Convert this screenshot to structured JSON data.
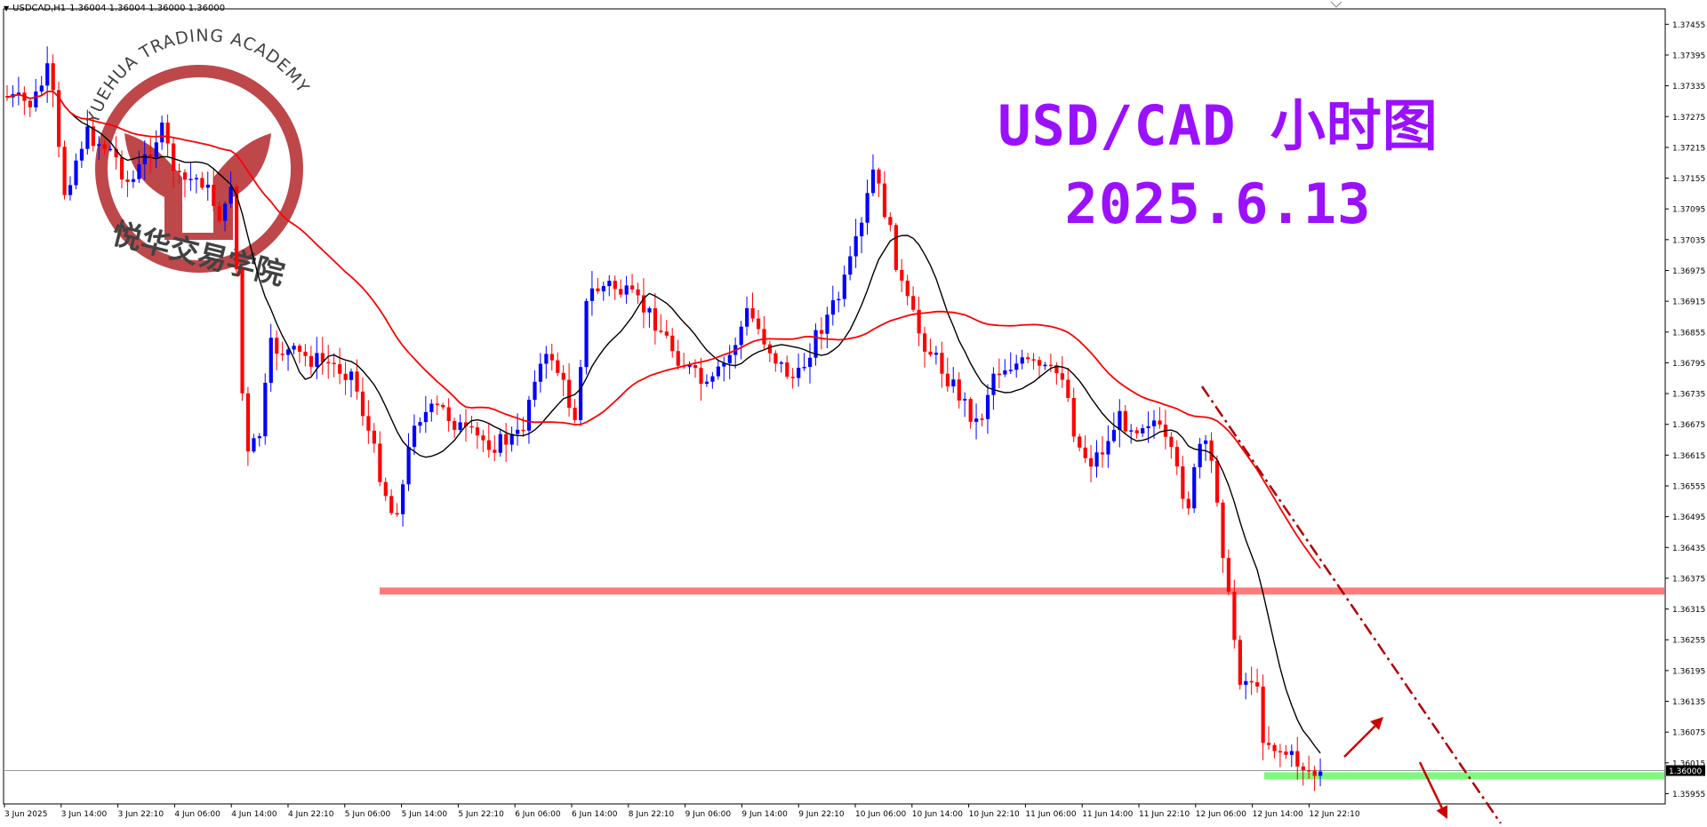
{
  "header": {
    "symbol_label": "USDCAD,H1",
    "ohlc_text": "1.36004 1.36004 1.36000 1.36000"
  },
  "headline": {
    "line1": "USD/CAD 小时图",
    "line2": "2025.6.13"
  },
  "watermark": {
    "text_top": "YUEHUA TRADING ACADEMY",
    "text_bottom": "悦华交易学院"
  },
  "colors": {
    "bull": "#0000ff",
    "bear": "#ff0000",
    "ma_fast": "#000000",
    "ma_slow": "#ff0000",
    "resistance": "#ff7b7b",
    "support": "#7dfa7d",
    "trendline": "#b00000",
    "headline": "#9b10ff",
    "price_tag_bg": "#000000"
  },
  "chart_data": {
    "type": "candlestick",
    "symbol": "USDCAD",
    "timeframe": "H1",
    "ylim": [
      1.35935,
      1.37485
    ],
    "y_ticks": [
      "1.37455",
      "1.37395",
      "1.37335",
      "1.37275",
      "1.37215",
      "1.37155",
      "1.37095",
      "1.37035",
      "1.36975",
      "1.36915",
      "1.36855",
      "1.36795",
      "1.36735",
      "1.36675",
      "1.36615",
      "1.36555",
      "1.36495",
      "1.36435",
      "1.36375",
      "1.36315",
      "1.36255",
      "1.36195",
      "1.36135",
      "1.36075",
      "1.36015",
      "1.35955"
    ],
    "x_ticks": [
      "3 Jun 2025",
      "3 Jun 14:00",
      "3 Jun 22:10",
      "4 Jun 06:00",
      "4 Jun 14:00",
      "4 Jun 22:10",
      "5 Jun 06:00",
      "5 Jun 14:00",
      "5 Jun 22:10",
      "6 Jun 06:00",
      "6 Jun 14:00",
      "8 Jun 22:10",
      "9 Jun 06:00",
      "9 Jun 14:00",
      "9 Jun 22:10",
      "10 Jun 06:00",
      "10 Jun 14:00",
      "10 Jun 22:10",
      "11 Jun 06:00",
      "11 Jun 14:00",
      "11 Jun 22:10",
      "12 Jun 06:00",
      "12 Jun 14:00",
      "12 Jun 22:10"
    ],
    "last_price": "1.36000",
    "resistance_level": 1.3635,
    "support_level": 1.35995,
    "key_points": [
      {
        "x": "3 Jun 2025",
        "price": 1.3715
      },
      {
        "x": "4 Jun 14:00",
        "price": 1.3656
      },
      {
        "x": "5 Jun 06:00",
        "price": 1.3635
      },
      {
        "x": "6 Jun 14:00",
        "price": 1.3695
      },
      {
        "x": "10 Jun 06:00",
        "price": 1.3727
      },
      {
        "x": "10 Jun 14:00",
        "price": 1.3671
      },
      {
        "x": "11 Jun 06:00",
        "price": 1.3688
      },
      {
        "x": "11 Jun 14:00",
        "price": 1.3652
      },
      {
        "x": "12 Jun 06:00",
        "price": 1.3668
      },
      {
        "x": "12 Jun 14:00",
        "price": 1.3601
      },
      {
        "x": "12 Jun 22:10",
        "price": 1.36
      }
    ]
  }
}
